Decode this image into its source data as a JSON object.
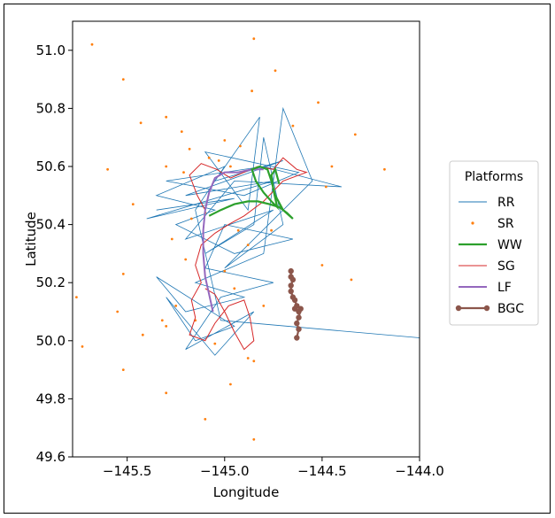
{
  "chart_data": {
    "type": "line",
    "title": "",
    "xlabel": "Longitude",
    "ylabel": "Latitude",
    "xlim": [
      -145.78,
      -144.0
    ],
    "ylim": [
      49.6,
      51.1
    ],
    "xticks": [
      -145.5,
      -145.0,
      -144.5,
      -144.0
    ],
    "xtick_labels": [
      "−145.5",
      "−145.0",
      "−144.5",
      "−144.0"
    ],
    "yticks": [
      49.6,
      49.8,
      50.0,
      50.2,
      50.4,
      50.6,
      50.8,
      51.0
    ],
    "ytick_labels": [
      "49.6",
      "49.8",
      "50.0",
      "50.2",
      "50.4",
      "50.6",
      "50.8",
      "51.0"
    ],
    "grid": false,
    "legend": {
      "title": "Platforms",
      "placement": "outside-right",
      "entries": [
        {
          "label": "RR",
          "kind": "line",
          "color": "#1f77b4"
        },
        {
          "label": "SR",
          "kind": "dot",
          "color": "#ff7f0e"
        },
        {
          "label": "WW",
          "kind": "line",
          "color": "#2ca02c"
        },
        {
          "label": "SG",
          "kind": "line",
          "color": "#d62728"
        },
        {
          "label": "LF",
          "kind": "line",
          "color": "#9467bd"
        },
        {
          "label": "BGC",
          "kind": "line-marker",
          "color": "#8c564b"
        }
      ]
    },
    "series": [
      {
        "name": "RR",
        "style": "line",
        "color": "#1f77b4",
        "points": [
          [
            -145.35,
            50.45
          ],
          [
            -144.95,
            50.49
          ],
          [
            -145.4,
            50.42
          ],
          [
            -144.75,
            50.55
          ],
          [
            -145.2,
            50.5
          ],
          [
            -144.7,
            50.62
          ],
          [
            -145.05,
            50.55
          ],
          [
            -144.82,
            50.77
          ],
          [
            -144.88,
            50.45
          ],
          [
            -145.1,
            50.65
          ],
          [
            -144.62,
            50.58
          ],
          [
            -144.9,
            50.5
          ],
          [
            -145.3,
            50.55
          ],
          [
            -144.8,
            50.6
          ],
          [
            -144.4,
            50.53
          ],
          [
            -144.95,
            50.55
          ],
          [
            -145.2,
            50.35
          ],
          [
            -144.75,
            50.45
          ],
          [
            -145.1,
            50.3
          ],
          [
            -144.85,
            50.4
          ],
          [
            -144.8,
            50.7
          ],
          [
            -144.7,
            50.4
          ],
          [
            -145.0,
            50.25
          ],
          [
            -144.55,
            50.55
          ],
          [
            -144.7,
            50.8
          ],
          [
            -144.8,
            50.3
          ],
          [
            -145.15,
            50.2
          ],
          [
            -144.9,
            50.15
          ],
          [
            -145.2,
            50.1
          ],
          [
            -145.35,
            50.22
          ],
          [
            -144.95,
            50.05
          ],
          [
            -145.15,
            50.0
          ],
          [
            -145.3,
            50.15
          ],
          [
            -145.05,
            49.95
          ],
          [
            -144.85,
            50.1
          ],
          [
            -145.2,
            49.97
          ],
          [
            -145.02,
            50.15
          ],
          [
            -144.75,
            50.2
          ],
          [
            -145.1,
            50.25
          ],
          [
            -145.0,
            50.4
          ],
          [
            -144.65,
            50.35
          ],
          [
            -144.95,
            50.3
          ],
          [
            -145.25,
            50.4
          ],
          [
            -145.05,
            50.45
          ],
          [
            -145.35,
            50.5
          ],
          [
            -145.0,
            50.6
          ],
          [
            -145.15,
            50.45
          ],
          [
            -145.02,
            50.07
          ],
          [
            -144.0,
            50.01
          ]
        ]
      },
      {
        "name": "SR",
        "style": "dot",
        "color": "#ff7f0e",
        "points": [
          [
            -145.68,
            51.02
          ],
          [
            -145.52,
            50.9
          ],
          [
            -145.3,
            50.77
          ],
          [
            -145.43,
            50.75
          ],
          [
            -145.21,
            50.58
          ],
          [
            -145.6,
            50.59
          ],
          [
            -145.47,
            50.47
          ],
          [
            -145.22,
            50.72
          ],
          [
            -145.18,
            50.66
          ],
          [
            -145.3,
            50.6
          ],
          [
            -145.08,
            50.63
          ],
          [
            -145.0,
            50.69
          ],
          [
            -144.92,
            50.67
          ],
          [
            -145.03,
            50.62
          ],
          [
            -144.97,
            50.6
          ],
          [
            -144.86,
            50.86
          ],
          [
            -144.85,
            51.04
          ],
          [
            -144.74,
            50.93
          ],
          [
            -144.65,
            50.74
          ],
          [
            -144.52,
            50.82
          ],
          [
            -144.33,
            50.71
          ],
          [
            -144.45,
            50.6
          ],
          [
            -144.48,
            50.53
          ],
          [
            -144.18,
            50.59
          ],
          [
            -145.17,
            50.42
          ],
          [
            -145.1,
            50.44
          ],
          [
            -144.93,
            50.38
          ],
          [
            -144.88,
            50.33
          ],
          [
            -144.76,
            50.38
          ],
          [
            -144.5,
            50.26
          ],
          [
            -144.35,
            50.21
          ],
          [
            -145.27,
            50.35
          ],
          [
            -145.2,
            50.28
          ],
          [
            -145.0,
            50.24
          ],
          [
            -145.52,
            50.23
          ],
          [
            -145.55,
            50.1
          ],
          [
            -145.76,
            50.15
          ],
          [
            -145.73,
            49.98
          ],
          [
            -145.52,
            49.9
          ],
          [
            -145.3,
            50.05
          ],
          [
            -145.15,
            50.07
          ],
          [
            -144.85,
            49.93
          ],
          [
            -144.88,
            49.94
          ],
          [
            -144.97,
            49.85
          ],
          [
            -145.05,
            49.99
          ],
          [
            -145.1,
            49.73
          ],
          [
            -145.3,
            49.82
          ],
          [
            -144.85,
            49.66
          ],
          [
            -145.42,
            50.02
          ],
          [
            -145.25,
            50.12
          ],
          [
            -145.32,
            50.07
          ],
          [
            -144.95,
            50.18
          ],
          [
            -144.8,
            50.12
          ]
        ]
      },
      {
        "name": "WW",
        "style": "line",
        "color": "#2ca02c",
        "points": [
          [
            -145.08,
            50.43
          ],
          [
            -145.02,
            50.45
          ],
          [
            -144.95,
            50.47
          ],
          [
            -144.88,
            50.48
          ],
          [
            -144.83,
            50.48
          ],
          [
            -144.77,
            50.47
          ],
          [
            -144.72,
            50.46
          ],
          [
            -144.68,
            50.44
          ],
          [
            -144.65,
            50.42
          ],
          [
            -144.7,
            50.45
          ],
          [
            -144.74,
            50.5
          ],
          [
            -144.76,
            50.55
          ],
          [
            -144.78,
            50.59
          ],
          [
            -144.82,
            50.6
          ],
          [
            -144.86,
            50.59
          ],
          [
            -144.84,
            50.55
          ],
          [
            -144.8,
            50.51
          ],
          [
            -144.76,
            50.48
          ],
          [
            -144.73,
            50.46
          ],
          [
            -144.75,
            50.52
          ],
          [
            -144.76,
            50.57
          ],
          [
            -144.74,
            50.59
          ],
          [
            -144.72,
            50.54
          ]
        ]
      },
      {
        "name": "SG",
        "style": "line",
        "color": "#d62728",
        "points": [
          [
            -145.1,
            50.45
          ],
          [
            -145.14,
            50.5
          ],
          [
            -145.18,
            50.57
          ],
          [
            -145.12,
            50.61
          ],
          [
            -145.04,
            50.59
          ],
          [
            -144.97,
            50.56
          ],
          [
            -144.9,
            50.58
          ],
          [
            -144.83,
            50.6
          ],
          [
            -144.75,
            50.59
          ],
          [
            -144.7,
            50.63
          ],
          [
            -144.63,
            50.59
          ],
          [
            -144.58,
            50.58
          ],
          [
            -144.7,
            50.55
          ],
          [
            -144.8,
            50.48
          ],
          [
            -144.9,
            50.43
          ],
          [
            -144.98,
            50.4
          ],
          [
            -145.05,
            50.37
          ],
          [
            -145.12,
            50.33
          ],
          [
            -145.15,
            50.26
          ],
          [
            -145.12,
            50.2
          ],
          [
            -145.17,
            50.14
          ],
          [
            -145.15,
            50.08
          ],
          [
            -145.18,
            50.02
          ],
          [
            -145.1,
            50.0
          ],
          [
            -145.05,
            50.06
          ],
          [
            -144.98,
            50.12
          ],
          [
            -144.9,
            50.14
          ],
          [
            -144.87,
            50.08
          ],
          [
            -144.85,
            50.0
          ],
          [
            -144.9,
            49.97
          ],
          [
            -144.95,
            50.03
          ],
          [
            -145.0,
            50.1
          ],
          [
            -145.05,
            50.16
          ],
          [
            -145.1,
            50.18
          ]
        ]
      },
      {
        "name": "LF",
        "style": "line",
        "color": "#9467bd",
        "points": [
          [
            -145.06,
            50.1
          ],
          [
            -145.08,
            50.16
          ],
          [
            -145.1,
            50.22
          ],
          [
            -145.11,
            50.3
          ],
          [
            -145.11,
            50.38
          ],
          [
            -145.1,
            50.45
          ],
          [
            -145.08,
            50.51
          ],
          [
            -145.05,
            50.56
          ],
          [
            -145.0,
            50.58
          ],
          [
            -144.93,
            50.58
          ],
          [
            -144.86,
            50.59
          ],
          [
            -144.8,
            50.59
          ]
        ]
      },
      {
        "name": "BGC",
        "style": "line-marker",
        "color": "#8c564b",
        "points": [
          [
            -144.66,
            50.24
          ],
          [
            -144.66,
            50.22
          ],
          [
            -144.65,
            50.21
          ],
          [
            -144.66,
            50.19
          ],
          [
            -144.66,
            50.17
          ],
          [
            -144.65,
            50.15
          ],
          [
            -144.64,
            50.14
          ],
          [
            -144.63,
            50.12
          ],
          [
            -144.64,
            50.11
          ],
          [
            -144.62,
            50.1
          ],
          [
            -144.61,
            50.11
          ],
          [
            -144.62,
            50.08
          ],
          [
            -144.63,
            50.06
          ],
          [
            -144.62,
            50.04
          ],
          [
            -144.63,
            50.01
          ]
        ]
      }
    ]
  }
}
